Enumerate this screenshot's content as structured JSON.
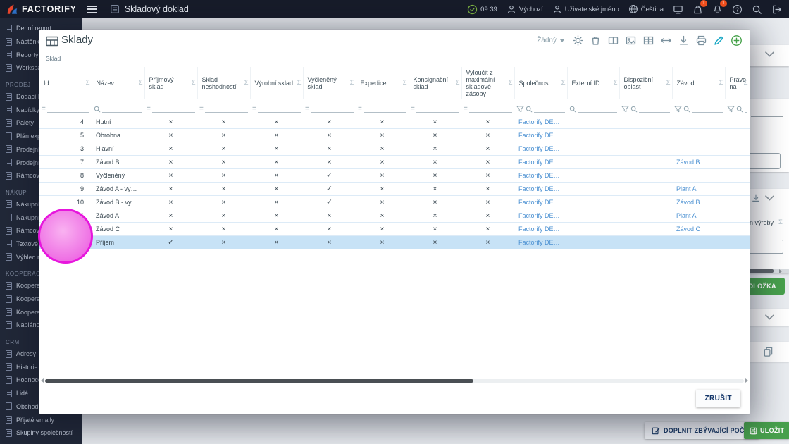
{
  "topbar": {
    "brand": "FACTORIFY",
    "page_title": "Skladový doklad",
    "time": "09:39",
    "profile_label": "Výchozí",
    "user_label": "Uživatelské jméno",
    "language_label": "Čeština",
    "cart_badge": "1",
    "bell_badge": "1"
  },
  "sidebar": {
    "groups": [
      {
        "header": "",
        "items": [
          "Denní report",
          "Nástěnka",
          "Reporty",
          "Workspace"
        ]
      },
      {
        "header": "PRODEJ",
        "items": [
          "Dodací listy",
          "Nabídky",
          "Palety",
          "Plán expedice",
          "Prodejní ce",
          "Prodejní obj",
          "Rámcové p"
        ]
      },
      {
        "header": "NÁKUP",
        "items": [
          "Nákupní ce",
          "Nákupní obj",
          "Rámcové n",
          "Textové ob",
          "Výhled nák"
        ]
      },
      {
        "header": "KOOPERACE",
        "items": [
          "Kooperačn",
          "Kooperačn",
          "Kooperačn",
          "Naplánova"
        ]
      },
      {
        "header": "CRM",
        "items": [
          "Adresy",
          "Historie ko",
          "Hodnocení",
          "Lidé",
          "Obchodní",
          "Přijaté emaily",
          "Skupiny společností"
        ]
      }
    ]
  },
  "modal": {
    "title": "Sklady",
    "tab_label": "Sklad",
    "preset_label": "Žádný",
    "cancel_label": "ZRUŠIT",
    "columns": [
      {
        "label": "Id",
        "filter": "eq"
      },
      {
        "label": "Název",
        "filter": "search"
      },
      {
        "label": "Příjmový sklad",
        "filter": "eq"
      },
      {
        "label": "Sklad neshodností",
        "filter": "eq"
      },
      {
        "label": "Výrobní sklad",
        "filter": "eq"
      },
      {
        "label": "Vyčleněný sklad",
        "filter": "eq"
      },
      {
        "label": "Expedice",
        "filter": "eq"
      },
      {
        "label": "Konsignační sklad",
        "filter": "eq"
      },
      {
        "label": "Vyloučit z maximální skladové zásoby",
        "filter": "eq"
      },
      {
        "label": "Společnost",
        "filter": "funnel-search"
      },
      {
        "label": "Externí ID",
        "filter": "search"
      },
      {
        "label": "Dispoziční oblast",
        "filter": "funnel-search"
      },
      {
        "label": "Závod",
        "filter": "funnel-search"
      },
      {
        "label": "Právo na",
        "filter": "funnel-search"
      }
    ],
    "rows": [
      {
        "id": "4",
        "name": "Hutní",
        "flags": [
          false,
          false,
          false,
          false,
          false,
          false,
          false
        ],
        "company": "Factorify DEMO ...",
        "extid": "",
        "area": "",
        "plant": "",
        "selected": false
      },
      {
        "id": "5",
        "name": "Obrobna",
        "flags": [
          false,
          false,
          false,
          false,
          false,
          false,
          false
        ],
        "company": "Factorify DEMO ...",
        "extid": "",
        "area": "",
        "plant": "",
        "selected": false
      },
      {
        "id": "3",
        "name": "Hlavní",
        "flags": [
          false,
          false,
          false,
          false,
          false,
          false,
          false
        ],
        "company": "Factorify DEMO ...",
        "extid": "",
        "area": "",
        "plant": "",
        "selected": false
      },
      {
        "id": "7",
        "name": "Závod B",
        "flags": [
          false,
          false,
          false,
          false,
          false,
          false,
          false
        ],
        "company": "Factorify DEMO ...",
        "extid": "",
        "area": "",
        "plant": "Závod B",
        "selected": false
      },
      {
        "id": "8",
        "name": "Vyčleněný",
        "flags": [
          false,
          false,
          false,
          true,
          false,
          false,
          false
        ],
        "company": "Factorify DEMO ...",
        "extid": "",
        "area": "",
        "plant": "",
        "selected": false
      },
      {
        "id": "9",
        "name": "Závod A - vyčlen...",
        "flags": [
          false,
          false,
          false,
          true,
          false,
          false,
          false
        ],
        "company": "Factorify DEMO ...",
        "extid": "",
        "area": "",
        "plant": "Plant A",
        "selected": false
      },
      {
        "id": "10",
        "name": "Závod B - vyčlen...",
        "flags": [
          false,
          false,
          false,
          true,
          false,
          false,
          false
        ],
        "company": "Factorify DEMO ...",
        "extid": "",
        "area": "",
        "plant": "Závod B",
        "selected": false
      },
      {
        "id": "6",
        "name": "Závod A",
        "flags": [
          false,
          false,
          false,
          false,
          false,
          false,
          false
        ],
        "company": "Factorify DEMO ...",
        "extid": "",
        "area": "",
        "plant": "Plant A",
        "selected": false
      },
      {
        "id": "",
        "name": "Závod C",
        "flags": [
          false,
          false,
          false,
          false,
          false,
          false,
          false
        ],
        "company": "Factorify DEMO ...",
        "extid": "",
        "area": "",
        "plant": "Závod C",
        "selected": false
      },
      {
        "id": "",
        "name": "Příjem",
        "flags": [
          true,
          false,
          false,
          false,
          false,
          false,
          false
        ],
        "company": "Factorify DEMO ...",
        "extid": "",
        "area": "",
        "plant": "",
        "selected": true
      }
    ]
  },
  "background": {
    "header_fragment": "n výroby",
    "add_item_fragment": "OLOŽKA",
    "fill_button": "DOPLNIT ZBÝVAJÍCÍ POČTY",
    "save_button": "ULOŽIT"
  }
}
